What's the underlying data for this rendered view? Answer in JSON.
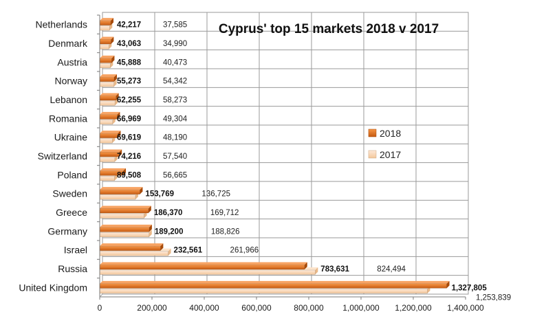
{
  "chart_data": {
    "type": "bar",
    "orientation": "horizontal",
    "title": "Cyprus' top 15 markets 2018 v 2017",
    "categories": [
      "Netherlands",
      "Denmark",
      "Austria",
      "Norway",
      "Lebanon",
      "Romania",
      "Ukraine",
      "Switzerland",
      "Poland",
      "Sweden",
      "Greece",
      "Germany",
      "Israel",
      "Russia",
      "United Kingdom"
    ],
    "series": [
      {
        "name": "2018",
        "color": "#E36C09",
        "values": [
          42217,
          43063,
          45888,
          55273,
          62255,
          66969,
          69619,
          74216,
          89508,
          153769,
          186370,
          189200,
          232561,
          783631,
          1327805
        ],
        "labels": [
          "42,217",
          "43,063",
          "45,888",
          "55,273",
          "62,255",
          "66,969",
          "69,619",
          "74,216",
          "89,508",
          "153,769",
          "186,370",
          "189,200",
          "232,561",
          "783,631",
          "1,327,805"
        ]
      },
      {
        "name": "2017",
        "color": "#F9D9B5",
        "values": [
          37585,
          34990,
          40473,
          54342,
          58273,
          49304,
          48190,
          57540,
          56665,
          136725,
          169712,
          188826,
          261966,
          824494,
          1253839
        ],
        "labels": [
          "37,585",
          "34,990",
          "40,473",
          "54,342",
          "58,273",
          "49,304",
          "48,190",
          "57,540",
          "56,665",
          "136,725",
          "169,712",
          "188,826",
          "261,966",
          "824,494",
          "1,253,839"
        ]
      }
    ],
    "xlim": [
      0,
      1400000
    ],
    "xticks": [
      0,
      200000,
      400000,
      600000,
      800000,
      1000000,
      1200000,
      1400000
    ],
    "xtick_labels": [
      "0",
      "200,000",
      "400,000",
      "600,000",
      "800,000",
      "1,000,000",
      "1,200,000",
      "1,400,000"
    ],
    "grid": true,
    "legend_position": "right",
    "xlabel": "",
    "ylabel": ""
  }
}
